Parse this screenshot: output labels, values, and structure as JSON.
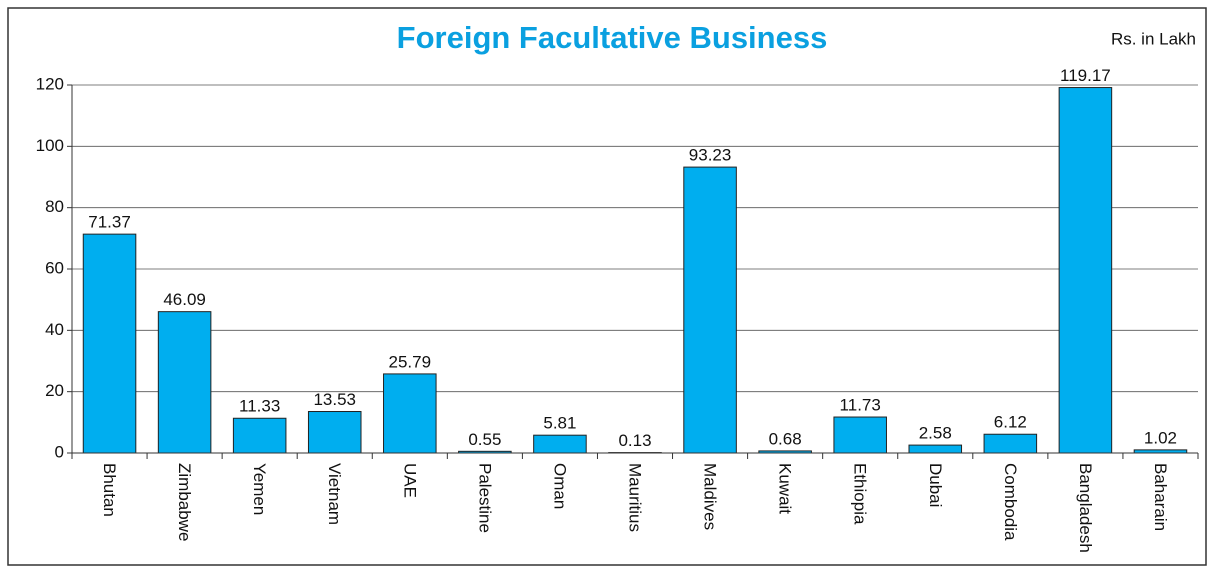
{
  "chart_data": {
    "type": "bar",
    "title": "Foreign Facultative Business",
    "subtitle": "Rs. in Lakh",
    "categories": [
      "Bhutan",
      "Zimbabwe",
      "Yemen",
      "Vietnam",
      "UAE",
      "Palestine",
      "Oman",
      "Mauritius",
      "Maldives",
      "Kuwait",
      "Ethiopia",
      "Dubai",
      "Combodia",
      "Bangladesh",
      "Baharain"
    ],
    "values": [
      71.37,
      46.09,
      11.33,
      13.53,
      25.79,
      0.55,
      5.81,
      0.13,
      93.23,
      0.68,
      11.73,
      2.58,
      6.12,
      119.17,
      1.02
    ],
    "color": "#00aeef",
    "ylim": [
      0,
      120
    ],
    "yticks": [
      0,
      20,
      40,
      60,
      80,
      100,
      120
    ],
    "grid": true
  }
}
